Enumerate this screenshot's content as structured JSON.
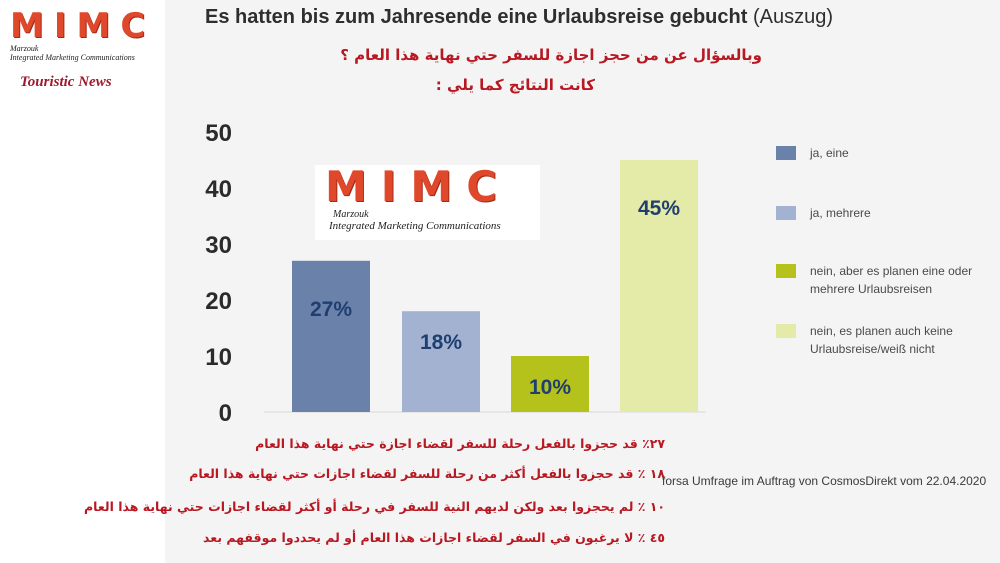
{
  "branding": {
    "logo_letters": "MIMC",
    "logo_line1": "Marzouk",
    "logo_line2": "Integrated Marketing Communications",
    "tagline": "Touristic News"
  },
  "header": {
    "title_main": "Es hatten bis zum Jahresende eine Urlaubsreise gebucht",
    "title_suffix": "(Auszug)",
    "question_ar_line1": "وبالسؤال عن من حجز اجازة للسفر حتي نهاية هذا العام ؟",
    "question_ar_line2": "كانت النتائج كما يلي :"
  },
  "chart_data": {
    "type": "bar",
    "categories": [
      "ja, eine",
      "ja, mehrere",
      "nein, aber es planen eine oder mehrere Urlaubsreisen",
      "nein, es planen auch keine Urlaubsreise/weiß nicht"
    ],
    "values": [
      27,
      18,
      10,
      45
    ],
    "data_labels": [
      "27%",
      "18%",
      "10%",
      "45%"
    ],
    "colors": [
      "#6a82aa",
      "#a4b2d1",
      "#b4c21b",
      "#e4eaa7"
    ],
    "label_colors": [
      "#1f3f70",
      "#1f3f70",
      "#1f3f70",
      "#1f3f70"
    ],
    "yticks": [
      "0",
      "10",
      "20",
      "30",
      "40",
      "50"
    ],
    "ylim": [
      0,
      50
    ],
    "grid": false,
    "legend_position": "right"
  },
  "legend": [
    {
      "label": "ja, eine",
      "color": "#6a82aa"
    },
    {
      "label": "ja, mehrere",
      "color": "#a4b2d1"
    },
    {
      "label": "nein, aber es planen eine oder mehrere Urlaubsreisen",
      "color": "#b4c21b"
    },
    {
      "label": "nein, es planen auch keine Urlaubsreise/weiß nicht",
      "color": "#e4eaa7"
    }
  ],
  "source": "forsa Umfrage im Auftrag von CosmosDirekt vom 22.04.2020",
  "arabic_notes": [
    "٢٧٪ قد حجزوا بالفعل رحلة للسفر لقضاء اجازة حتي نهاية هذا العام",
    "١٨ ٪ قد حجزوا بالفعل أكثر من رحلة للسفر لقضاء اجازات حتي نهاية هذا العام",
    "١٠ ٪ لم يحجزوا بعد ولكن لديهم النية للسفر في رحلة أو أكثر لقضاء اجازات حتي نهاية هذا العام",
    "٤٥ ٪ لا يرغبون في السفر لقضاء اجازات هذا العام أو لم يحددوا موقفهم بعد"
  ]
}
